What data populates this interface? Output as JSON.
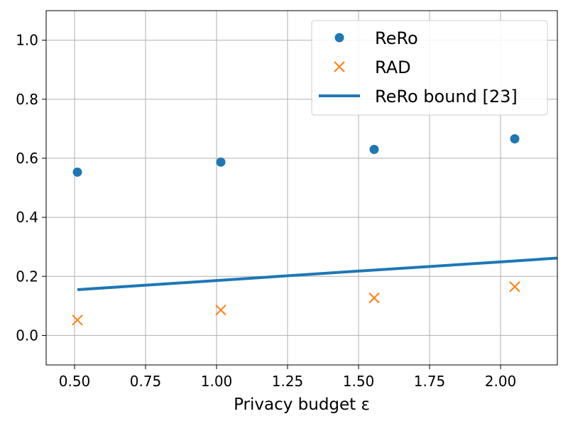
{
  "chart_data": {
    "type": "scatter",
    "xlabel": "Privacy budget ε",
    "ylabel": "",
    "title": "",
    "xlim": [
      0.4,
      2.2
    ],
    "ylim": [
      -0.1,
      1.1
    ],
    "xticks": [
      0.5,
      0.75,
      1.0,
      1.25,
      1.5,
      1.75,
      2.0
    ],
    "xtick_labels": [
      "0.50",
      "0.75",
      "1.00",
      "1.25",
      "1.50",
      "1.75",
      "2.00"
    ],
    "yticks": [
      0.0,
      0.2,
      0.4,
      0.6,
      0.8,
      1.0
    ],
    "ytick_labels": [
      "0.0",
      "0.2",
      "0.4",
      "0.6",
      "0.8",
      "1.0"
    ],
    "grid": true,
    "legend_position": "top-right",
    "series": [
      {
        "name": "ReRo",
        "kind": "scatter",
        "marker": "circle",
        "color": "#1f77b4",
        "x": [
          0.51,
          1.015,
          1.555,
          2.05
        ],
        "y": [
          0.553,
          0.587,
          0.63,
          0.666
        ]
      },
      {
        "name": "RAD",
        "kind": "scatter",
        "marker": "x",
        "color": "#ff7f0e",
        "x": [
          0.51,
          1.015,
          1.555,
          2.05
        ],
        "y": [
          0.052,
          0.086,
          0.127,
          0.165
        ]
      },
      {
        "name": "ReRo bound [23]",
        "kind": "line",
        "color": "#1f77b4",
        "x": [
          0.51,
          1.0,
          1.5,
          2.0,
          2.2
        ],
        "y": [
          0.155,
          0.186,
          0.218,
          0.249,
          0.262
        ]
      }
    ]
  }
}
